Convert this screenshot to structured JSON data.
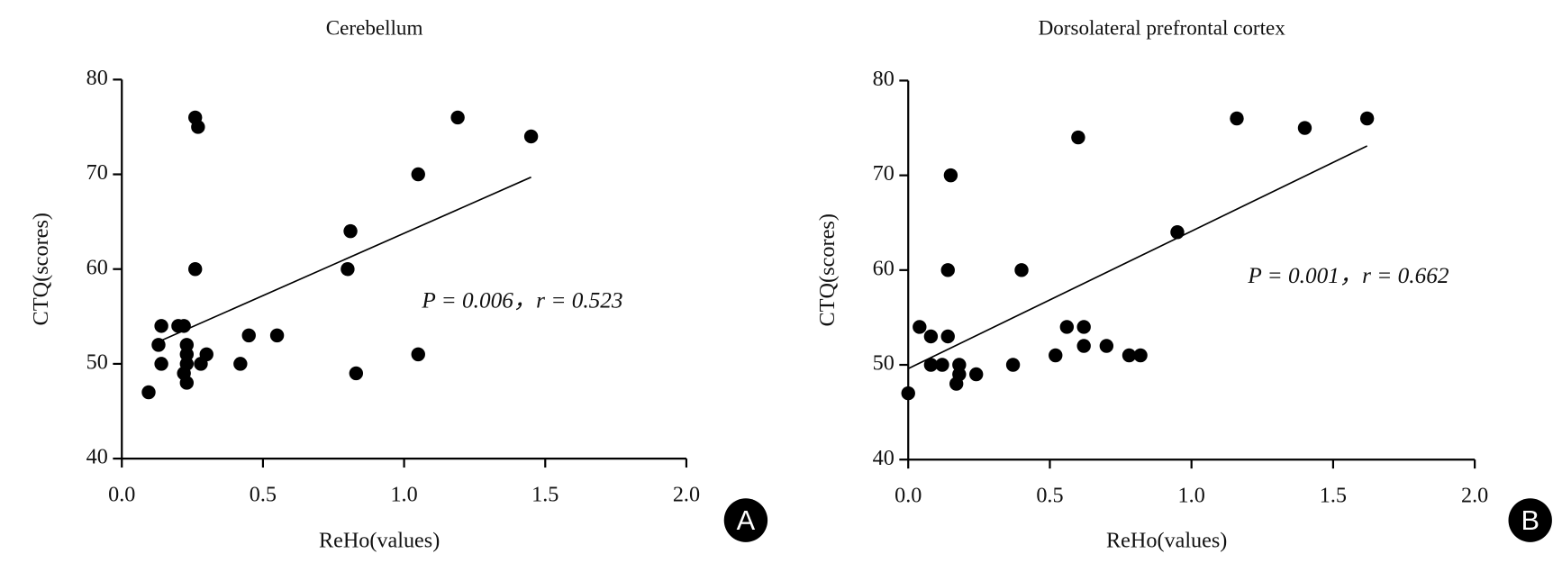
{
  "chart_data": [
    {
      "type": "scatter",
      "title": "Cerebellum",
      "x_label": "ReHo(values)",
      "y_label": "CTQ(scores)",
      "annotation": "P = 0.006，r = 0.523",
      "panel_label": "A",
      "color": "#000000",
      "x": [
        0.095,
        0.13,
        0.14,
        0.14,
        0.2,
        0.22,
        0.22,
        0.23,
        0.23,
        0.23,
        0.23,
        0.26,
        0.27,
        0.26,
        0.28,
        0.3,
        0.42,
        0.45,
        0.55,
        0.8,
        0.81,
        0.83,
        1.05,
        1.05,
        1.19,
        1.45
      ],
      "values": [
        47,
        52,
        54,
        50,
        54,
        54,
        49,
        52,
        51,
        50,
        48,
        76,
        75,
        60,
        50,
        51,
        50,
        53,
        53,
        60,
        64,
        49,
        70,
        51,
        76,
        74
      ],
      "fit": {
        "x": [
          0.12,
          1.45
        ],
        "y": [
          52.2,
          69.7
        ]
      },
      "xlim": [
        0,
        2
      ],
      "ylim": [
        40,
        80
      ],
      "xticks": [
        {
          "value": 0,
          "label": "0.0"
        },
        {
          "value": 0.5,
          "label": "0.5"
        },
        {
          "value": 1,
          "label": "1.0"
        },
        {
          "value": 1.5,
          "label": "1.5"
        },
        {
          "value": 2,
          "label": "2.0"
        }
      ],
      "yticks": [
        40,
        50,
        60,
        70,
        80
      ]
    },
    {
      "type": "scatter",
      "title": "Dorsolateral prefrontal cortex",
      "x_label": "ReHo(values)",
      "y_label": "CTQ(scores)",
      "annotation": "P = 0.001，r = 0.662",
      "panel_label": "B",
      "color": "#000000",
      "x": [
        0.0,
        0.04,
        0.08,
        0.08,
        0.12,
        0.14,
        0.14,
        0.15,
        0.17,
        0.18,
        0.18,
        0.24,
        0.37,
        0.4,
        0.52,
        0.56,
        0.6,
        0.62,
        0.62,
        0.7,
        0.78,
        0.82,
        0.95,
        1.16,
        1.4,
        1.62
      ],
      "values": [
        47,
        54,
        53,
        50,
        50,
        53,
        60,
        70,
        48,
        49,
        50,
        49,
        50,
        60,
        51,
        54,
        74,
        52,
        54,
        52,
        51,
        51,
        64,
        76,
        75,
        76
      ],
      "fit": {
        "x": [
          0,
          1.62
        ],
        "y": [
          49.6,
          73.1
        ]
      },
      "xlim": [
        0,
        2
      ],
      "ylim": [
        40,
        80
      ],
      "xticks": [
        {
          "value": 0,
          "label": "0.0"
        },
        {
          "value": 0.5,
          "label": "0.5"
        },
        {
          "value": 1,
          "label": "1.0"
        },
        {
          "value": 1.5,
          "label": "1.5"
        },
        {
          "value": 2,
          "label": "2.0"
        }
      ],
      "yticks": [
        40,
        50,
        60,
        70,
        80
      ]
    }
  ]
}
